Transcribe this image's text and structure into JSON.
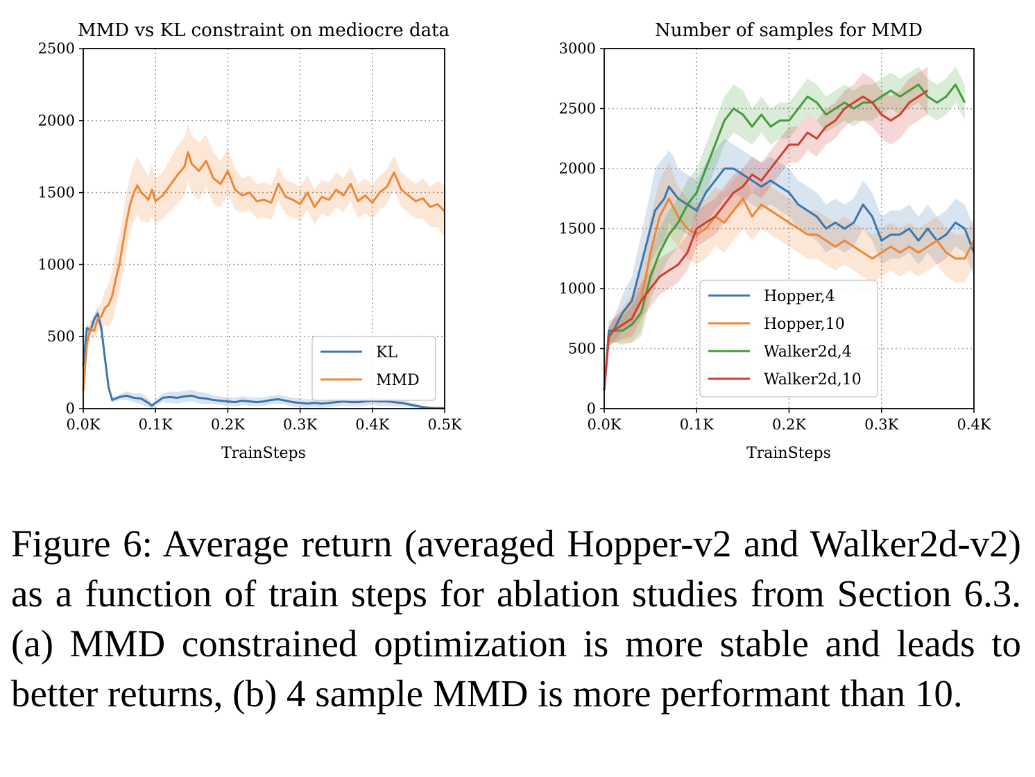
{
  "chart_data": [
    {
      "type": "line",
      "title": "MMD vs KL constraint on mediocre data",
      "xlabel": "TrainSteps",
      "ylabel": "",
      "xlim": [
        0,
        500
      ],
      "ylim": [
        0,
        2500
      ],
      "xticks": [
        0,
        100,
        200,
        300,
        400,
        500
      ],
      "xtick_labels": [
        "0.0K",
        "0.1K",
        "0.2K",
        "0.3K",
        "0.4K",
        "0.5K"
      ],
      "yticks": [
        0,
        500,
        1000,
        1500,
        2000,
        2500
      ],
      "ytick_labels": [
        "0",
        "500",
        "1000",
        "1500",
        "2000",
        "2500"
      ],
      "grid": true,
      "legend_position": "lower-right",
      "series": [
        {
          "name": "KL",
          "color": "#3a76b0",
          "x": [
            0,
            5,
            10,
            15,
            20,
            25,
            30,
            35,
            40,
            50,
            60,
            70,
            80,
            90,
            95,
            100,
            110,
            120,
            130,
            140,
            150,
            160,
            170,
            180,
            190,
            200,
            210,
            220,
            230,
            240,
            250,
            260,
            270,
            280,
            290,
            300,
            310,
            320,
            330,
            340,
            350,
            360,
            370,
            380,
            390,
            400,
            410,
            420,
            430,
            440,
            450,
            460,
            470,
            480,
            490,
            500
          ],
          "y": [
            300,
            560,
            540,
            620,
            660,
            560,
            350,
            150,
            60,
            80,
            90,
            75,
            70,
            40,
            20,
            40,
            75,
            80,
            75,
            85,
            90,
            75,
            70,
            60,
            55,
            50,
            45,
            55,
            50,
            45,
            50,
            60,
            65,
            55,
            45,
            40,
            35,
            40,
            35,
            40,
            45,
            50,
            45,
            45,
            50,
            55,
            50,
            50,
            45,
            40,
            30,
            20,
            10,
            5,
            3,
            3
          ],
          "band": [
            20,
            30,
            30,
            40,
            40,
            40,
            40,
            30,
            20,
            20,
            30,
            30,
            40,
            30,
            20,
            20,
            30,
            40,
            40,
            40,
            40,
            40,
            40,
            30,
            30,
            30,
            30,
            30,
            30,
            30,
            30,
            30,
            30,
            30,
            30,
            30,
            30,
            30,
            30,
            30,
            30,
            30,
            30,
            30,
            30,
            30,
            30,
            30,
            30,
            25,
            20,
            15,
            10,
            5,
            3,
            3
          ]
        },
        {
          "name": "MMD",
          "color": "#ef8636",
          "x": [
            0,
            5,
            10,
            15,
            20,
            25,
            30,
            35,
            40,
            45,
            50,
            55,
            60,
            65,
            70,
            75,
            80,
            85,
            90,
            95,
            100,
            110,
            120,
            130,
            140,
            145,
            150,
            160,
            170,
            180,
            190,
            200,
            210,
            220,
            230,
            240,
            250,
            260,
            270,
            280,
            290,
            300,
            310,
            320,
            330,
            340,
            350,
            360,
            370,
            380,
            390,
            400,
            410,
            420,
            430,
            440,
            450,
            460,
            470,
            480,
            490,
            500
          ],
          "y": [
            120,
            450,
            560,
            540,
            620,
            640,
            700,
            720,
            780,
            900,
            1000,
            1150,
            1300,
            1420,
            1500,
            1550,
            1500,
            1480,
            1450,
            1520,
            1440,
            1480,
            1550,
            1620,
            1680,
            1780,
            1700,
            1650,
            1720,
            1600,
            1560,
            1650,
            1520,
            1480,
            1500,
            1440,
            1450,
            1430,
            1560,
            1470,
            1450,
            1420,
            1500,
            1400,
            1470,
            1450,
            1520,
            1480,
            1560,
            1440,
            1480,
            1430,
            1500,
            1540,
            1640,
            1520,
            1480,
            1440,
            1460,
            1400,
            1420,
            1370
          ],
          "band": [
            30,
            60,
            60,
            60,
            80,
            100,
            120,
            150,
            180,
            200,
            200,
            200,
            200,
            200,
            200,
            200,
            200,
            180,
            160,
            180,
            160,
            160,
            180,
            200,
            200,
            200,
            200,
            200,
            180,
            180,
            160,
            160,
            140,
            120,
            120,
            120,
            120,
            120,
            120,
            120,
            120,
            120,
            120,
            120,
            120,
            120,
            120,
            120,
            120,
            120,
            120,
            120,
            120,
            120,
            120,
            120,
            120,
            120,
            140,
            140,
            160,
            180
          ]
        }
      ]
    },
    {
      "type": "line",
      "title": "Number of samples for MMD",
      "xlabel": "TrainSteps",
      "ylabel": "",
      "xlim": [
        0,
        400
      ],
      "ylim": [
        0,
        3000
      ],
      "xticks": [
        0,
        100,
        200,
        300,
        400
      ],
      "xtick_labels": [
        "0.0K",
        "0.1K",
        "0.2K",
        "0.3K",
        "0.4K"
      ],
      "yticks": [
        0,
        500,
        1000,
        1500,
        2000,
        2500,
        3000
      ],
      "ytick_labels": [
        "0",
        "500",
        "1000",
        "1500",
        "2000",
        "2500",
        "3000"
      ],
      "grid": true,
      "legend_position": "lower-center",
      "series": [
        {
          "name": "Hopper,4",
          "color": "#3a76b0",
          "x": [
            0,
            5,
            10,
            20,
            30,
            40,
            50,
            55,
            60,
            65,
            70,
            75,
            80,
            90,
            100,
            110,
            120,
            130,
            140,
            150,
            160,
            170,
            180,
            190,
            200,
            210,
            220,
            230,
            240,
            250,
            260,
            270,
            280,
            290,
            300,
            310,
            320,
            330,
            340,
            350,
            360,
            370,
            380,
            390,
            400
          ],
          "y": [
            150,
            650,
            650,
            800,
            900,
            1200,
            1500,
            1650,
            1700,
            1750,
            1850,
            1800,
            1750,
            1700,
            1650,
            1800,
            1900,
            2000,
            2000,
            1950,
            1900,
            1850,
            1900,
            1850,
            1800,
            1700,
            1650,
            1600,
            1500,
            1550,
            1500,
            1550,
            1700,
            1600,
            1400,
            1450,
            1450,
            1500,
            1400,
            1500,
            1400,
            1450,
            1550,
            1500,
            1300
          ],
          "band": [
            40,
            80,
            100,
            150,
            200,
            250,
            300,
            350,
            350,
            350,
            300,
            300,
            250,
            250,
            250,
            250,
            250,
            250,
            200,
            200,
            200,
            200,
            200,
            200,
            200,
            200,
            200,
            200,
            200,
            200,
            200,
            200,
            200,
            200,
            200,
            200,
            200,
            200,
            200,
            200,
            200,
            200,
            200,
            200,
            200
          ]
        },
        {
          "name": "Hopper,10",
          "color": "#ef8636",
          "x": [
            0,
            5,
            10,
            20,
            30,
            40,
            50,
            60,
            70,
            80,
            90,
            100,
            110,
            120,
            130,
            140,
            150,
            160,
            170,
            180,
            190,
            200,
            210,
            220,
            230,
            240,
            250,
            260,
            270,
            280,
            290,
            300,
            310,
            320,
            330,
            340,
            350,
            360,
            370,
            380,
            390,
            400
          ],
          "y": [
            150,
            600,
            650,
            700,
            750,
            900,
            1300,
            1600,
            1750,
            1600,
            1500,
            1450,
            1500,
            1600,
            1550,
            1650,
            1750,
            1600,
            1700,
            1650,
            1600,
            1550,
            1500,
            1450,
            1450,
            1400,
            1350,
            1400,
            1350,
            1300,
            1250,
            1300,
            1350,
            1300,
            1350,
            1300,
            1350,
            1400,
            1300,
            1250,
            1250,
            1400
          ],
          "band": [
            40,
            80,
            100,
            150,
            200,
            250,
            300,
            300,
            300,
            250,
            250,
            250,
            250,
            250,
            250,
            250,
            250,
            200,
            200,
            200,
            200,
            200,
            200,
            200,
            200,
            200,
            200,
            200,
            200,
            200,
            200,
            200,
            200,
            200,
            200,
            200,
            200,
            200,
            200,
            200,
            200,
            200
          ]
        },
        {
          "name": "Walker2d,4",
          "color": "#449b3c",
          "x": [
            0,
            5,
            10,
            20,
            30,
            40,
            50,
            60,
            70,
            80,
            90,
            100,
            110,
            120,
            130,
            140,
            150,
            160,
            170,
            180,
            190,
            200,
            210,
            220,
            230,
            240,
            250,
            260,
            270,
            280,
            290,
            300,
            310,
            320,
            330,
            340,
            350,
            360,
            370,
            380,
            390
          ],
          "y": [
            150,
            600,
            650,
            650,
            700,
            800,
            1100,
            1300,
            1450,
            1550,
            1700,
            1800,
            2000,
            2200,
            2400,
            2500,
            2450,
            2350,
            2450,
            2350,
            2400,
            2400,
            2500,
            2600,
            2550,
            2450,
            2500,
            2550,
            2500,
            2550,
            2550,
            2600,
            2650,
            2600,
            2650,
            2700,
            2600,
            2550,
            2600,
            2700,
            2550
          ],
          "band": [
            40,
            80,
            100,
            120,
            150,
            200,
            200,
            200,
            200,
            200,
            200,
            200,
            200,
            200,
            200,
            200,
            200,
            150,
            150,
            150,
            150,
            150,
            150,
            150,
            150,
            150,
            150,
            150,
            150,
            150,
            150,
            150,
            150,
            150,
            150,
            150,
            150,
            150,
            150,
            150,
            150
          ]
        },
        {
          "name": "Walker2d,10",
          "color": "#cf3d33",
          "x": [
            0,
            5,
            10,
            20,
            30,
            40,
            50,
            60,
            70,
            80,
            90,
            100,
            110,
            120,
            130,
            140,
            150,
            160,
            170,
            180,
            190,
            200,
            210,
            220,
            230,
            240,
            250,
            260,
            270,
            280,
            290,
            300,
            310,
            320,
            330,
            340,
            350
          ],
          "y": [
            150,
            600,
            650,
            700,
            750,
            900,
            1000,
            1100,
            1150,
            1200,
            1300,
            1500,
            1550,
            1600,
            1700,
            1800,
            1850,
            1950,
            1900,
            2000,
            2100,
            2200,
            2200,
            2300,
            2250,
            2350,
            2400,
            2500,
            2550,
            2600,
            2550,
            2450,
            2400,
            2450,
            2550,
            2600,
            2650
          ],
          "band": [
            40,
            80,
            100,
            120,
            150,
            150,
            150,
            150,
            150,
            150,
            150,
            150,
            150,
            150,
            150,
            150,
            150,
            150,
            150,
            150,
            150,
            150,
            150,
            150,
            150,
            150,
            150,
            150,
            150,
            200,
            200,
            200,
            200,
            200,
            200,
            200,
            200
          ]
        }
      ]
    }
  ],
  "caption": "Figure 6:  Average return (averaged Hopper-v2 and Walker2d-v2) as a function of train steps for ablation studies from Section 6.3. (a) MMD constrained optimization is more stable and leads to better returns, (b) 4 sample MMD is more performant than 10."
}
